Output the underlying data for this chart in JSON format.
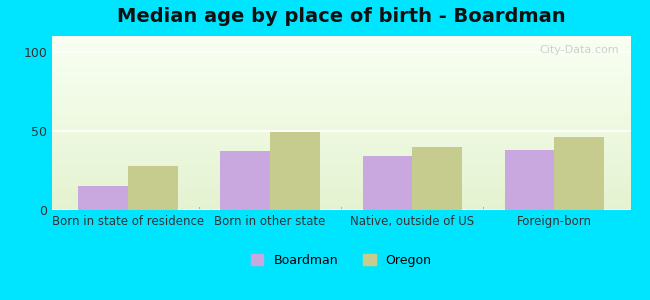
{
  "title": "Median age by place of birth - Boardman",
  "categories": [
    "Born in state of residence",
    "Born in other state",
    "Native, outside of US",
    "Foreign-born"
  ],
  "boardman_values": [
    15,
    37,
    34,
    38
  ],
  "oregon_values": [
    28,
    49,
    40,
    46
  ],
  "boardman_color": "#c9a8e0",
  "oregon_color": "#c5cc8e",
  "background_outer": "#00e5ff",
  "ylim": [
    0,
    110
  ],
  "yticks": [
    0,
    50,
    100
  ],
  "bar_width": 0.35,
  "title_fontsize": 14,
  "legend_labels": [
    "Boardman",
    "Oregon"
  ],
  "watermark": "City-Data.com"
}
